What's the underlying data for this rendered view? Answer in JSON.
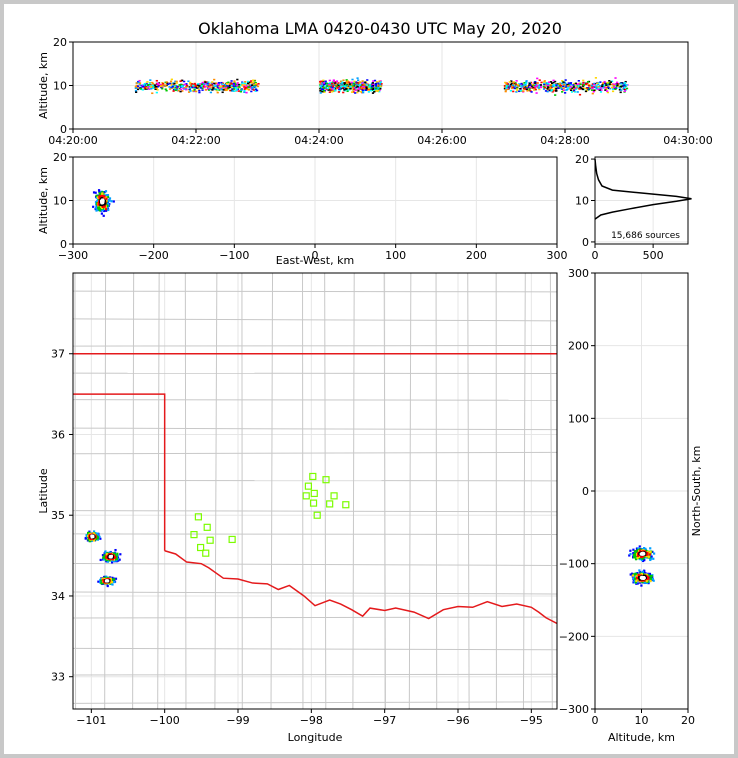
{
  "title": "Oklahoma LMA 0420-0430 UTC May 20, 2020",
  "chart_data": [
    {
      "type": "scatter",
      "panel": "time-altitude",
      "ylabel": "Altitude, km",
      "ylim": [
        0,
        20
      ],
      "yticks": [
        "0",
        "10",
        "20"
      ],
      "xticks": [
        "04:20:00",
        "04:22:00",
        "04:24:00",
        "04:26:00",
        "04:28:00",
        "04:30:00"
      ],
      "xlim_minutes": [
        0,
        10
      ],
      "clusters": [
        {
          "t_start_min": 1.0,
          "t_end_min": 3.0,
          "alt_km": 10
        },
        {
          "t_start_min": 4.0,
          "t_end_min": 5.0,
          "alt_km": 10
        },
        {
          "t_start_min": 7.0,
          "t_end_min": 9.0,
          "alt_km": 10
        }
      ]
    },
    {
      "type": "heatmap",
      "panel": "eastwest-altitude",
      "xlabel": "East-West, km",
      "ylabel": "Altitude, km",
      "xlim": [
        -300,
        300
      ],
      "ylim": [
        0,
        20
      ],
      "xticks": [
        "−300",
        "−200",
        "−100",
        "0",
        "100",
        "200",
        "300"
      ],
      "yticks": [
        "0",
        "10",
        "20"
      ],
      "clusters": [
        {
          "x_km": -265,
          "alt_km": 10
        }
      ]
    },
    {
      "type": "line",
      "panel": "altitude-histogram",
      "xlim": [
        0,
        800
      ],
      "ylim": [
        0,
        20
      ],
      "xticks": [
        "0",
        "500"
      ],
      "yticks": [
        "0",
        "10",
        "20"
      ],
      "annotation": "15,686 sources",
      "profile": [
        [
          0,
          5.5
        ],
        [
          50,
          6.5
        ],
        [
          150,
          7.2
        ],
        [
          300,
          8.0
        ],
        [
          500,
          9.0
        ],
        [
          700,
          9.8
        ],
        [
          830,
          10.4
        ],
        [
          700,
          11.0
        ],
        [
          400,
          11.8
        ],
        [
          150,
          12.5
        ],
        [
          60,
          13.5
        ],
        [
          30,
          15.0
        ],
        [
          15,
          16.5
        ],
        [
          5,
          18.5
        ],
        [
          0,
          20
        ]
      ]
    },
    {
      "type": "scatter",
      "panel": "map",
      "xlabel": "Longitude",
      "ylabel": "Latitude",
      "xlim": [
        -101.25,
        -94.65
      ],
      "ylim": [
        32.6,
        38.0
      ],
      "xticks": [
        "−101",
        "−100",
        "−99",
        "−98",
        "−97",
        "−96",
        "−95"
      ],
      "yticks": [
        "33",
        "34",
        "35",
        "36",
        "37"
      ],
      "stations": [
        [
          -97.98,
          35.48
        ],
        [
          -98.04,
          35.36
        ],
        [
          -97.96,
          35.27
        ],
        [
          -97.8,
          35.44
        ],
        [
          -97.69,
          35.24
        ],
        [
          -98.07,
          35.24
        ],
        [
          -97.97,
          35.15
        ],
        [
          -97.75,
          35.14
        ],
        [
          -97.53,
          35.13
        ],
        [
          -97.92,
          35.0
        ],
        [
          -99.54,
          34.98
        ],
        [
          -99.42,
          34.85
        ],
        [
          -99.6,
          34.76
        ],
        [
          -99.38,
          34.69
        ],
        [
          -99.08,
          34.7
        ],
        [
          -99.51,
          34.6
        ],
        [
          -99.44,
          34.53
        ]
      ],
      "clusters": [
        {
          "lon": -101.0,
          "lat": 34.75
        },
        {
          "lon": -100.75,
          "lat": 34.5
        },
        {
          "lon": -100.8,
          "lat": 34.2
        }
      ]
    },
    {
      "type": "heatmap",
      "panel": "altitude-northsouth",
      "xlabel": "Altitude, km",
      "ylabel": "North-South, km",
      "xlim": [
        0,
        20
      ],
      "ylim": [
        -300,
        300
      ],
      "xticks": [
        "0",
        "10",
        "20"
      ],
      "yticks": [
        "−300",
        "−200",
        "−100",
        "0",
        "100",
        "200",
        "300"
      ],
      "clusters": [
        {
          "alt_km": 10,
          "y_km": -85
        },
        {
          "alt_km": 10,
          "y_km": -118
        }
      ]
    }
  ],
  "colors": {
    "border": "#e41a1c",
    "county": "#c8c8c8",
    "station": "#7cfc00",
    "grid": "#e6e6e6"
  }
}
